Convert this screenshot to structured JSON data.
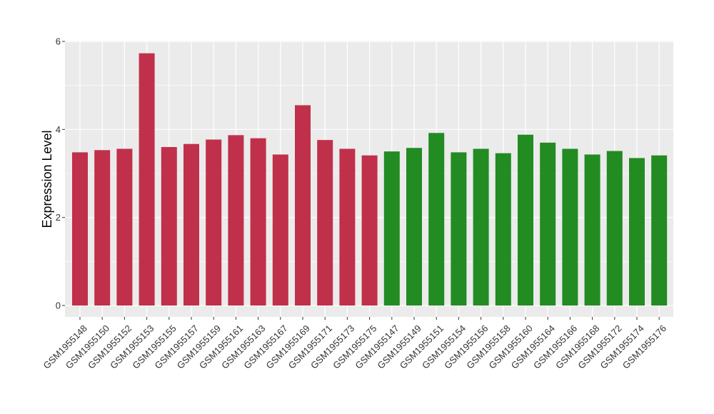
{
  "chart_data": {
    "type": "bar",
    "title": "",
    "xlabel": "",
    "ylabel": "Expression Level",
    "ylim": [
      0,
      6
    ],
    "yticks": [
      0,
      2,
      4,
      6
    ],
    "grid": true,
    "legend": "none",
    "categories": [
      "GSM1955148",
      "GSM1955150",
      "GSM1955152",
      "GSM1955153",
      "GSM1955155",
      "GSM1955157",
      "GSM1955159",
      "GSM1955161",
      "GSM1955163",
      "GSM1955167",
      "GSM1955169",
      "GSM1955171",
      "GSM1955173",
      "GSM1955175",
      "GSM1955147",
      "GSM1955149",
      "GSM1955151",
      "GSM1955154",
      "GSM1955156",
      "GSM1955158",
      "GSM1955160",
      "GSM1955164",
      "GSM1955166",
      "GSM1955168",
      "GSM1955172",
      "GSM1955174",
      "GSM1955176"
    ],
    "values": [
      3.48,
      3.53,
      3.56,
      5.73,
      3.6,
      3.67,
      3.77,
      3.87,
      3.8,
      3.43,
      4.55,
      3.76,
      3.56,
      3.41,
      3.5,
      3.58,
      3.92,
      3.48,
      3.56,
      3.46,
      3.88,
      3.7,
      3.56,
      3.43,
      3.51,
      3.35,
      3.41
    ],
    "bar_colors": [
      "#c0304b",
      "#c0304b",
      "#c0304b",
      "#c0304b",
      "#c0304b",
      "#c0304b",
      "#c0304b",
      "#c0304b",
      "#c0304b",
      "#c0304b",
      "#c0304b",
      "#c0304b",
      "#c0304b",
      "#c0304b",
      "#228b22",
      "#228b22",
      "#228b22",
      "#228b22",
      "#228b22",
      "#228b22",
      "#228b22",
      "#228b22",
      "#228b22",
      "#228b22",
      "#228b22",
      "#228b22",
      "#228b22"
    ],
    "panel_background": "#ebebeb",
    "grid_color": "#ffffff"
  }
}
